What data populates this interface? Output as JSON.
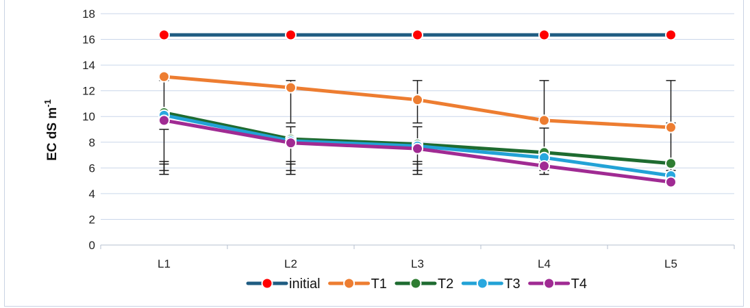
{
  "chart_data": {
    "type": "line",
    "title": "",
    "xlabel": "",
    "ylabel": "EC dS m",
    "ylabel_superscript": "-1",
    "ylim": [
      0,
      18
    ],
    "yticks": [
      0,
      2,
      4,
      6,
      8,
      10,
      12,
      14,
      16,
      18
    ],
    "grid": true,
    "legend_position": "bottom",
    "categories": [
      "L1",
      "L2",
      "L3",
      "L4",
      "L5"
    ],
    "series": [
      {
        "name": "initial",
        "line_color": "#1f5c82",
        "marker_color": "#ff0000",
        "values": [
          16.35,
          16.35,
          16.35,
          16.35,
          16.35
        ],
        "error_bars": []
      },
      {
        "name": "T1",
        "line_color": "#ed7d31",
        "marker_color": "#ed7d31",
        "values": [
          13.1,
          12.25,
          11.3,
          9.7,
          9.15
        ],
        "error_bars": [
          [
            9.5,
            12.8
          ],
          [
            9.5,
            12.8
          ],
          [
            9.5,
            12.8
          ],
          [
            9.5,
            12.8
          ],
          [
            9.5,
            12.8
          ]
        ]
      },
      {
        "name": "T2",
        "line_color": "#1e6b30",
        "marker_color": "#2e7d32",
        "values": [
          10.3,
          8.25,
          7.85,
          7.2,
          6.35
        ],
        "error_bars": [
          [
            5.5,
            9.0
          ],
          [
            5.5,
            9.2
          ],
          [
            5.5,
            9.2
          ],
          [
            5.5,
            9.1
          ],
          [
            5.5,
            9.1
          ]
        ]
      },
      {
        "name": "T3",
        "line_color": "#22a2d6",
        "marker_color": "#29a8df",
        "values": [
          10.1,
          8.1,
          7.7,
          6.8,
          5.4
        ],
        "error_bars": [
          [
            5.5,
            6.5
          ],
          [
            5.5,
            6.5
          ],
          [
            5.5,
            6.5
          ],
          [
            5.5,
            6.5
          ],
          [
            5.5,
            6.5
          ]
        ]
      },
      {
        "name": "T4",
        "line_color": "#a02b93",
        "marker_color": "#a02b93",
        "values": [
          9.7,
          7.95,
          7.5,
          6.15,
          4.9
        ],
        "error_bars": [
          [
            5.8,
            6.3
          ],
          [
            5.8,
            6.3
          ],
          [
            5.8,
            6.3
          ],
          [
            5.8,
            6.3
          ],
          [
            5.8,
            6.3
          ]
        ]
      }
    ]
  }
}
